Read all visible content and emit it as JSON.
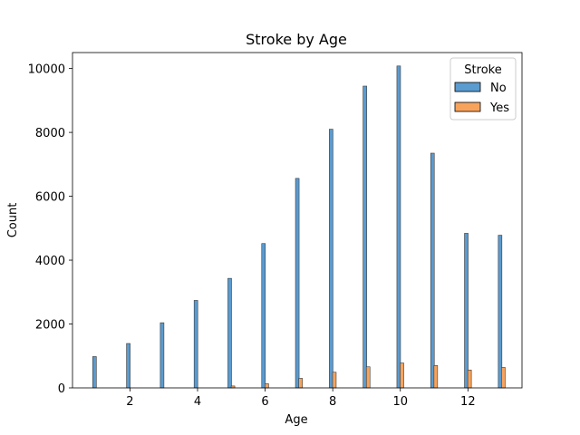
{
  "chart_data": {
    "type": "bar",
    "title": "Stroke by Age",
    "xlabel": "Age",
    "ylabel": "Count",
    "categories": [
      1,
      2,
      3,
      4,
      5,
      6,
      7,
      8,
      9,
      10,
      11,
      12,
      13
    ],
    "series": [
      {
        "name": "No",
        "color": "#5a9bd0",
        "values": [
          980,
          1390,
          2040,
          2740,
          3430,
          4520,
          6560,
          8100,
          9450,
          10080,
          7350,
          4840,
          4780
        ]
      },
      {
        "name": "Yes",
        "color": "#f7a35c",
        "values": [
          0,
          0,
          0,
          0,
          60,
          130,
          300,
          490,
          660,
          780,
          700,
          560,
          640
        ]
      }
    ],
    "xlim": [
      0.3,
      13.6
    ],
    "ylim": [
      0,
      10500
    ],
    "xticks": [
      2,
      4,
      6,
      8,
      10,
      12
    ],
    "yticks": [
      0,
      2000,
      4000,
      6000,
      8000,
      10000
    ],
    "legend": {
      "title": "Stroke",
      "placement": "top-right"
    },
    "grid": false
  }
}
